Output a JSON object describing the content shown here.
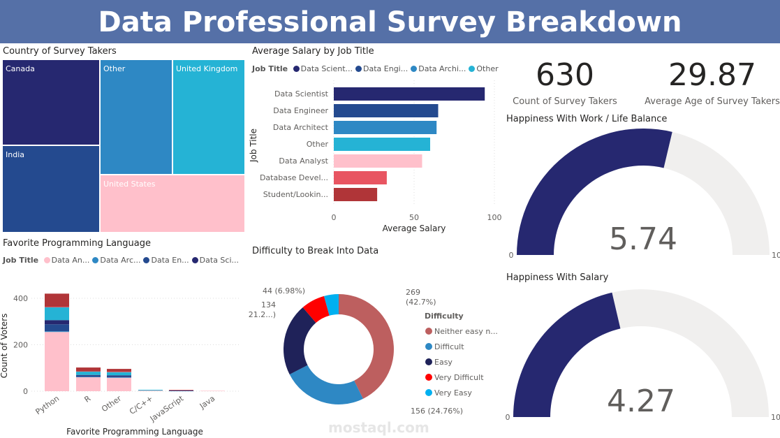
{
  "header": {
    "title": "Data Professional Survey Breakdown"
  },
  "treemap": {
    "title": "Country of Survey Takers",
    "items": [
      {
        "label": "Canada",
        "color": "#262870"
      },
      {
        "label": "India",
        "color": "#244a8f"
      },
      {
        "label": "Other",
        "color": "#2e88c4"
      },
      {
        "label": "United Kingdom",
        "color": "#25b3d5"
      },
      {
        "label": "United States",
        "color": "#ffc0cb"
      }
    ]
  },
  "salary": {
    "title": "Average Salary by Job Title",
    "legend_title": "Job Title",
    "legend": [
      {
        "label": "Data Scient...",
        "color": "#262870"
      },
      {
        "label": "Data Engi...",
        "color": "#244a8f"
      },
      {
        "label": "Data Archi...",
        "color": "#2e88c4"
      },
      {
        "label": "Other",
        "color": "#25b3d5"
      }
    ]
  },
  "languages": {
    "title": "Favorite Programming Language",
    "legend_title": "Job Title",
    "legend": [
      {
        "label": "Data An...",
        "color": "#ffc0cb"
      },
      {
        "label": "Data Arc...",
        "color": "#2e88c4"
      },
      {
        "label": "Data En...",
        "color": "#244a8f"
      },
      {
        "label": "Data Sci...",
        "color": "#262870"
      }
    ]
  },
  "difficulty": {
    "title": "Difficulty to Break Into Data",
    "legend_title": "Difficulty"
  },
  "kpis": [
    {
      "value": "630",
      "label": "Count of Survey Takers"
    },
    {
      "value": "29.87",
      "label": "Average Age of Survey Takers"
    }
  ],
  "gauges": [
    {
      "title": "Happiness With Work / Life Balance",
      "value": 5.74,
      "value_label": "5.74",
      "min": "0",
      "max": "10",
      "fill": "#262870",
      "track": "#f0efee"
    },
    {
      "title": "Happiness With Salary",
      "value": 4.27,
      "value_label": "4.27",
      "min": "0",
      "max": "10",
      "fill": "#262870",
      "track": "#f0efee"
    }
  ],
  "chart_data": [
    {
      "type": "bar",
      "orientation": "horizontal",
      "title": "Average Salary by Job Title",
      "xlabel": "Average Salary",
      "ylabel": "Job Title",
      "xlim": [
        0,
        100
      ],
      "xticks": [
        "0",
        "50",
        "100"
      ],
      "grid": true,
      "categories": [
        "Data Scientist",
        "Data Engineer",
        "Data Architect",
        "Other",
        "Data Analyst",
        "Database Devel...",
        "Student/Lookin..."
      ],
      "values": [
        94,
        65,
        64,
        60,
        55,
        33,
        27
      ],
      "colors": [
        "#262870",
        "#244a8f",
        "#2e88c4",
        "#25b3d5",
        "#ffc0cb",
        "#e85561",
        "#b03538"
      ]
    },
    {
      "type": "bar",
      "stacked": true,
      "title": "Favorite Programming Language",
      "xlabel": "Favorite Programming Language",
      "ylabel": "Count of Voters",
      "ylim": [
        0,
        430
      ],
      "yticks": [
        "0",
        "200",
        "400"
      ],
      "grid": true,
      "categories": [
        "Python",
        "R",
        "Other",
        "C/C++",
        "JavaScript",
        "Java"
      ],
      "series": [
        {
          "name": "Data Analyst",
          "color": "#ffc0cb",
          "values": [
            255,
            60,
            58,
            3,
            0,
            2
          ]
        },
        {
          "name": "Data Architect",
          "color": "#2e88c4",
          "values": [
            3,
            2,
            2,
            0,
            0,
            0
          ]
        },
        {
          "name": "Data Engineer",
          "color": "#244a8f",
          "values": [
            30,
            6,
            4,
            0,
            3,
            0
          ]
        },
        {
          "name": "Data Scientist",
          "color": "#262870",
          "values": [
            18,
            2,
            4,
            0,
            0,
            0
          ]
        },
        {
          "name": "Other",
          "color": "#25b3d5",
          "values": [
            55,
            14,
            14,
            3,
            0,
            0
          ]
        },
        {
          "name": "Database Developer",
          "color": "#e85561",
          "values": [
            2,
            1,
            2,
            0,
            2,
            0
          ]
        },
        {
          "name": "Student/Looking",
          "color": "#b03538",
          "values": [
            57,
            17,
            12,
            0,
            1,
            0
          ]
        }
      ]
    },
    {
      "type": "pie",
      "donut": true,
      "title": "Difficulty to Break Into Data",
      "legend_title": "Difficulty",
      "slices": [
        {
          "label": "Neither easy n...",
          "value": 269,
          "data_label": "269\n(42.7%)",
          "color": "#bd5f5f"
        },
        {
          "label": "Difficult",
          "value": 156,
          "data_label": "156 (24.76%)",
          "color": "#2e88c4"
        },
        {
          "label": "Easy",
          "value": 134,
          "data_label": "134\n(21.2...)",
          "color": "#1f2259"
        },
        {
          "label": "Very Difficult",
          "value": 44,
          "data_label": "44 (6.98%)",
          "color": "#ff0000"
        },
        {
          "label": "Very Easy",
          "value": 27,
          "color": "#00b0f0"
        }
      ]
    }
  ],
  "watermark": {
    "text": "mostaql.com"
  }
}
